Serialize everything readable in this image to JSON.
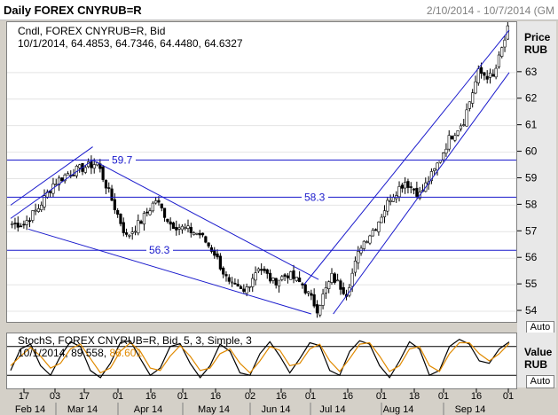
{
  "window": {
    "title": "Daily FOREX CNYRUB=R",
    "date_range": "2/10/2014 - 10/7/2014 (GM"
  },
  "main_panel": {
    "legend_line1": "Cndl, FOREX CNYRUB=R, Bid",
    "legend_line2": "10/1/2014, 64.4853, 64.7346, 64.4480, 64.6327",
    "axis_title": "Price",
    "axis_unit": "RUB",
    "auto_label": "Auto",
    "level_labels": [
      "59.7",
      "58.3",
      "56.3"
    ]
  },
  "oscillator_panel": {
    "legend_line1": "StochS, FOREX CNYRUB=R, Bid,  5, 3, Simple, 3",
    "legend_date": "10/1/2014,",
    "legend_k": "89.558,",
    "legend_d": "86.601",
    "axis_title": "Value",
    "axis_unit": "RUB",
    "auto_label": "Auto"
  },
  "x_axis": {
    "days": [
      "17",
      "03",
      "17",
      "01",
      "16",
      "01",
      "16",
      "02",
      "16",
      "01",
      "16",
      "01",
      "18",
      "01",
      "16",
      "01"
    ],
    "months": [
      "Feb 14",
      "Mar 14",
      "Apr 14",
      "May 14",
      "Jun 14",
      "Jul 14",
      "Aug 14",
      "Sep 14"
    ]
  },
  "chart_data": [
    {
      "type": "candlestick",
      "title": "Daily FOREX CNYRUB=R",
      "ylabel": "Price RUB",
      "ylim": [
        53.6,
        64.9
      ],
      "yticks": [
        54,
        55,
        56,
        57,
        58,
        59,
        60,
        61,
        62,
        63
      ],
      "x": [
        "2014-02-10",
        "2014-02-17",
        "2014-02-24",
        "2014-03-03",
        "2014-03-10",
        "2014-03-17",
        "2014-03-24",
        "2014-03-31",
        "2014-04-07",
        "2014-04-14",
        "2014-04-21",
        "2014-04-28",
        "2014-05-05",
        "2014-05-12",
        "2014-05-19",
        "2014-05-26",
        "2014-06-02",
        "2014-06-09",
        "2014-06-16",
        "2014-06-23",
        "2014-06-30",
        "2014-07-07",
        "2014-07-14",
        "2014-07-21",
        "2014-07-28",
        "2014-08-04",
        "2014-08-11",
        "2014-08-18",
        "2014-08-25",
        "2014-09-01",
        "2014-09-08",
        "2014-09-15",
        "2014-09-22",
        "2014-09-29"
      ],
      "close": [
        57.3,
        57.9,
        58.8,
        59.2,
        59.4,
        59.6,
        58.2,
        56.8,
        57.4,
        58.2,
        57.3,
        57.1,
        56.9,
        56.2,
        55.0,
        54.7,
        55.7,
        55.1,
        55.4,
        55.0,
        54.1,
        55.3,
        54.7,
        56.5,
        57.2,
        58.3,
        58.9,
        58.4,
        59.3,
        60.5,
        61.2,
        63.0,
        62.8,
        64.6
      ],
      "levels": [
        {
          "label": "59.7",
          "value": 59.7
        },
        {
          "label": "58.3",
          "value": 58.3
        },
        {
          "label": "56.3",
          "value": 56.3
        }
      ],
      "last_candle": {
        "date": "10/1/2014",
        "open": 64.4853,
        "high": 64.7346,
        "low": 64.448,
        "close": 64.6327
      }
    },
    {
      "type": "line",
      "title": "StochS, FOREX CNYRUB=R, Bid, 5, 3, Simple, 3",
      "ylabel": "Value RUB",
      "ylim": [
        0,
        100
      ],
      "series": [
        {
          "name": "%K",
          "color": "#000000",
          "values": [
            30,
            75,
            85,
            40,
            20,
            60,
            90,
            80,
            30,
            15,
            45,
            88,
            92,
            55,
            20,
            35,
            80,
            86,
            45,
            15,
            40,
            85,
            70,
            25,
            20,
            65,
            90,
            60,
            25,
            55,
            88,
            82,
            30,
            20,
            70,
            92,
            85,
            40,
            15,
            50,
            90,
            75,
            20,
            30,
            80,
            95,
            85,
            50,
            45,
            75,
            89.6
          ]
        },
        {
          "name": "%D",
          "color": "#e08a00",
          "values": [
            40,
            60,
            78,
            60,
            35,
            45,
            75,
            85,
            55,
            25,
            35,
            70,
            88,
            70,
            35,
            30,
            60,
            82,
            60,
            30,
            35,
            65,
            75,
            45,
            25,
            50,
            80,
            72,
            40,
            45,
            75,
            85,
            50,
            28,
            55,
            85,
            88,
            60,
            28,
            40,
            75,
            80,
            40,
            28,
            65,
            88,
            88,
            65,
            50,
            65,
            86.6
          ]
        }
      ],
      "last_values": {
        "date": "10/1/2014",
        "k": 89.558,
        "d": 86.601
      }
    }
  ],
  "colors": {
    "up_candle": "#ffffff",
    "down_candle": "#000000",
    "trend_lines": "#1a1acc",
    "levels": "#1a1acc",
    "stoch_k": "#000000",
    "stoch_d": "#e08a00"
  }
}
